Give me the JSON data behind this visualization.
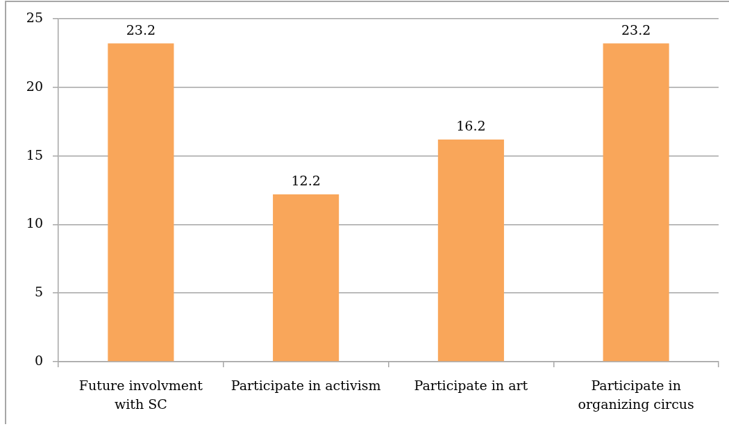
{
  "chart_data": {
    "type": "bar",
    "categories": [
      "Future involvment with SC",
      "Participate in activism",
      "Participate in art",
      "Participate in organizing circus"
    ],
    "values": [
      23.2,
      12.2,
      16.2,
      23.2
    ],
    "color": "#f9a65a",
    "ylim": [
      0,
      25
    ],
    "yticks": [
      0,
      5,
      10,
      15,
      20,
      25
    ],
    "grid": "y",
    "data_labels": true
  }
}
